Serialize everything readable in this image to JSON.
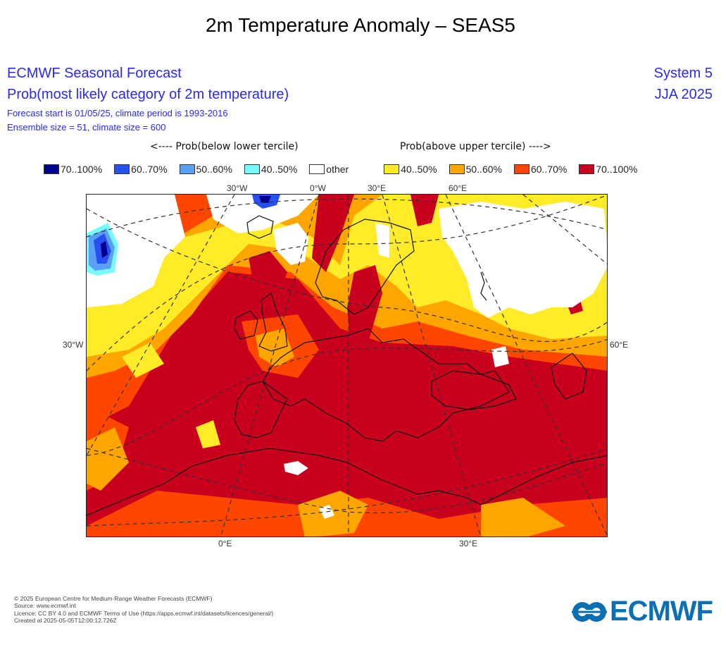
{
  "title": "2m Temperature Anomaly – SEAS5",
  "header": {
    "line1": "ECMWF Seasonal Forecast",
    "line2": "Prob(most likely category of 2m temperature)",
    "line3": "Forecast start is 01/05/25, climate period is 1993-2016",
    "line4": "Ensemble size = 51, climate size = 600",
    "system": "System 5",
    "season": "JJA 2025"
  },
  "legend": {
    "below_label": "<---- Prob(below lower tercile)",
    "above_label": "Prob(above upper tercile) ---->",
    "items": [
      {
        "label": "70..100%",
        "color": "#00008c"
      },
      {
        "label": "60..70%",
        "color": "#2850f0"
      },
      {
        "label": "50..60%",
        "color": "#5aa0f5"
      },
      {
        "label": "40..50%",
        "color": "#78fafa"
      },
      {
        "label": "other",
        "color": "#ffffff"
      },
      {
        "label": "40..50%",
        "color": "#ffeb28"
      },
      {
        "label": "50..60%",
        "color": "#ffa500"
      },
      {
        "label": "60..70%",
        "color": "#ff4600"
      },
      {
        "label": "70..100%",
        "color": "#c8001e"
      }
    ]
  },
  "map": {
    "top_labels": [
      "30°W",
      "0°W",
      "30°E",
      "60°E"
    ],
    "left_label": "30°W",
    "right_label": "60°E",
    "bottom_labels": [
      "0°E",
      "30°E"
    ]
  },
  "footer": {
    "copyright": "© 2025 European Centre for Medium-Range Weather Forecasts (ECMWF)",
    "source": "Source: www.ecmwf.int",
    "licence": "Licence: CC BY 4.0 and ECMWF Terms of Use (https://apps.ecmwf.int/datasets/licences/general/)",
    "created": "Created at 2025-05-05T12:00:12.726Z"
  },
  "logo": {
    "text": "ECMWF",
    "color": "#0b6fb3"
  }
}
